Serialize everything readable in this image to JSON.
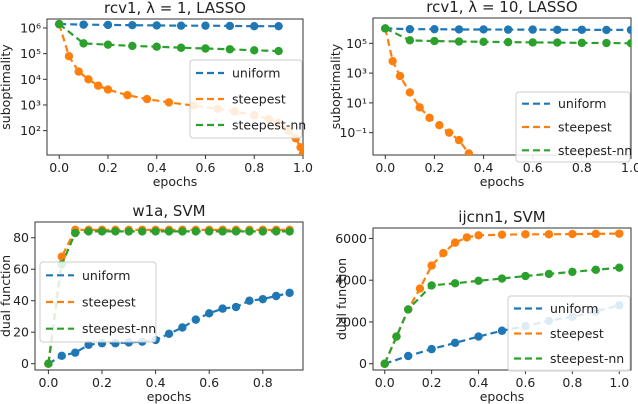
{
  "colors": {
    "uniform": "#1f77b4",
    "steepest": "#ff7f0e",
    "steepest-nn": "#2ca02c"
  },
  "chart_data": [
    {
      "type": "line",
      "title": "rcv1, λ = 1, LASSO",
      "xlabel": "epochs",
      "ylabel": "suboptimality",
      "yscale": "log",
      "xlim": [
        -0.05,
        1.0
      ],
      "ylim_log10": [
        1.05,
        6.35
      ],
      "xticks": [
        0.0,
        0.2,
        0.4,
        0.6,
        0.8,
        1.0
      ],
      "xtick_labels": [
        "0.0",
        "0.2",
        "0.4",
        "0.6",
        "0.8",
        "1.0"
      ],
      "yticks_log10": [
        2,
        3,
        4,
        5,
        6
      ],
      "ytick_labels": [
        "10²",
        "10³",
        "10⁴",
        "10⁵",
        "10⁶"
      ],
      "legend": "right",
      "series": [
        {
          "name": "uniform",
          "x": [
            0.0,
            0.1,
            0.2,
            0.3,
            0.4,
            0.5,
            0.6,
            0.7,
            0.8,
            0.9
          ],
          "y_log10": [
            6.15,
            6.13,
            6.12,
            6.11,
            6.1,
            6.09,
            6.09,
            6.08,
            6.07,
            6.07
          ]
        },
        {
          "name": "steepest",
          "x": [
            0.0,
            0.04,
            0.08,
            0.12,
            0.16,
            0.2,
            0.28,
            0.36,
            0.45,
            0.55,
            0.65,
            0.72,
            0.8,
            0.86,
            0.9,
            0.94,
            0.97,
            0.99,
            1.0
          ],
          "y_log10": [
            6.15,
            4.9,
            4.3,
            4.0,
            3.75,
            3.6,
            3.38,
            3.23,
            3.1,
            2.98,
            2.85,
            2.75,
            2.6,
            2.45,
            2.3,
            2.0,
            1.7,
            1.35,
            1.1
          ]
        },
        {
          "name": "steepest-nn",
          "x": [
            0.0,
            0.1,
            0.2,
            0.3,
            0.4,
            0.5,
            0.6,
            0.7,
            0.8,
            0.9
          ],
          "y_log10": [
            6.15,
            5.4,
            5.35,
            5.3,
            5.27,
            5.23,
            5.2,
            5.17,
            5.13,
            5.1
          ]
        }
      ]
    },
    {
      "type": "line",
      "title": "rcv1, λ = 10, LASSO",
      "xlabel": "epochs",
      "ylabel": "suboptimality",
      "yscale": "log",
      "xlim": [
        -0.05,
        1.0
      ],
      "ylim_log10": [
        -2.5,
        6.7
      ],
      "xticks": [
        0.0,
        0.2,
        0.4,
        0.6,
        0.8,
        1.0
      ],
      "xtick_labels": [
        "0.0",
        "0.2",
        "0.4",
        "0.6",
        "0.8",
        "1.0"
      ],
      "yticks_log10": [
        -1,
        1,
        3,
        5
      ],
      "ytick_labels": [
        "10⁻¹",
        "10¹",
        "10³",
        "10⁵"
      ],
      "legend": "right",
      "series": [
        {
          "name": "uniform",
          "x": [
            0.0,
            0.1,
            0.2,
            0.3,
            0.4,
            0.5,
            0.6,
            0.7,
            0.8,
            0.9,
            1.0
          ],
          "y_log10": [
            6.0,
            5.95,
            5.95,
            5.93,
            5.93,
            5.92,
            5.92,
            5.91,
            5.91,
            5.9,
            5.9
          ]
        },
        {
          "name": "steepest",
          "x": [
            0.0,
            0.03,
            0.06,
            0.1,
            0.14,
            0.18,
            0.22,
            0.26,
            0.3,
            0.34
          ],
          "y_log10": [
            6.0,
            3.8,
            2.8,
            1.7,
            0.7,
            0.0,
            -0.5,
            -1.0,
            -1.5,
            -2.4
          ]
        },
        {
          "name": "steepest-nn",
          "x": [
            0.0,
            0.1,
            0.2,
            0.3,
            0.4,
            0.5,
            0.6,
            0.7,
            0.8,
            0.9,
            1.0
          ],
          "y_log10": [
            6.0,
            5.2,
            5.15,
            5.12,
            5.1,
            5.08,
            5.06,
            5.05,
            5.03,
            5.02,
            5.0
          ]
        }
      ]
    },
    {
      "type": "line",
      "title": "w1a, SVM",
      "xlabel": "epochs",
      "ylabel": "dual function",
      "yscale": "linear",
      "xlim": [
        -0.05,
        0.95
      ],
      "ylim": [
        -4,
        90
      ],
      "xticks": [
        0.0,
        0.2,
        0.4,
        0.6,
        0.8
      ],
      "xtick_labels": [
        "0.0",
        "0.2",
        "0.4",
        "0.6",
        "0.8"
      ],
      "yticks": [
        0,
        20,
        40,
        60,
        80
      ],
      "ytick_labels": [
        "0",
        "20",
        "40",
        "60",
        "80"
      ],
      "legend": "center",
      "series": [
        {
          "name": "uniform",
          "x": [
            0.0,
            0.05,
            0.1,
            0.15,
            0.2,
            0.25,
            0.3,
            0.35,
            0.4,
            0.45,
            0.5,
            0.55,
            0.6,
            0.65,
            0.7,
            0.75,
            0.8,
            0.85,
            0.9
          ],
          "y": [
            0,
            5,
            7,
            12,
            13,
            13,
            13.5,
            14,
            15,
            19,
            23,
            28,
            32,
            35,
            36,
            40,
            41,
            43,
            45
          ]
        },
        {
          "name": "steepest",
          "x": [
            0.0,
            0.05,
            0.1,
            0.15,
            0.2,
            0.25,
            0.3,
            0.35,
            0.4,
            0.45,
            0.5,
            0.55,
            0.6,
            0.65,
            0.7,
            0.75,
            0.8,
            0.85,
            0.9
          ],
          "y": [
            0,
            68,
            85,
            85,
            85,
            85,
            85,
            85,
            85,
            85,
            85,
            85,
            85,
            85,
            85,
            85,
            85,
            85,
            85
          ]
        },
        {
          "name": "steepest-nn",
          "x": [
            0.0,
            0.05,
            0.1,
            0.15,
            0.2,
            0.25,
            0.3,
            0.35,
            0.4,
            0.45,
            0.5,
            0.55,
            0.6,
            0.65,
            0.7,
            0.75,
            0.8,
            0.85,
            0.9
          ],
          "y": [
            0,
            63,
            83,
            84,
            84,
            84,
            84,
            84,
            84,
            84,
            84,
            84,
            84,
            84,
            84,
            84,
            84,
            84,
            84
          ]
        }
      ]
    },
    {
      "type": "line",
      "title": "ijcnn1, SVM",
      "xlabel": "epochs",
      "ylabel": "dual function",
      "yscale": "linear",
      "xlim": [
        -0.05,
        1.05
      ],
      "ylim": [
        -300,
        6500
      ],
      "xticks": [
        0.0,
        0.2,
        0.4,
        0.6,
        0.8,
        1.0
      ],
      "xtick_labels": [
        "0.0",
        "0.2",
        "0.4",
        "0.6",
        "0.8",
        "1.0"
      ],
      "yticks": [
        0,
        2000,
        4000,
        6000
      ],
      "ytick_labels": [
        "0",
        "2000",
        "4000",
        "6000"
      ],
      "legend": "bottom-right",
      "series": [
        {
          "name": "uniform",
          "x": [
            0.0,
            0.1,
            0.2,
            0.3,
            0.4,
            0.5,
            0.6,
            0.7,
            0.8,
            0.9,
            1.0
          ],
          "y": [
            0,
            370,
            700,
            1000,
            1300,
            1580,
            1800,
            2050,
            2250,
            2500,
            2800
          ]
        },
        {
          "name": "steepest",
          "x": [
            0.0,
            0.05,
            0.1,
            0.15,
            0.2,
            0.25,
            0.3,
            0.35,
            0.4,
            0.5,
            0.6,
            0.7,
            0.8,
            0.9,
            1.0
          ],
          "y": [
            0,
            1300,
            2600,
            3600,
            4700,
            5300,
            5800,
            6050,
            6150,
            6180,
            6200,
            6200,
            6210,
            6220,
            6230
          ]
        },
        {
          "name": "steepest-nn",
          "x": [
            0.0,
            0.05,
            0.1,
            0.2,
            0.3,
            0.4,
            0.5,
            0.6,
            0.7,
            0.8,
            0.9,
            1.0
          ],
          "y": [
            0,
            1300,
            2600,
            3750,
            3850,
            3970,
            4080,
            4200,
            4300,
            4400,
            4500,
            4600
          ]
        }
      ]
    }
  ]
}
